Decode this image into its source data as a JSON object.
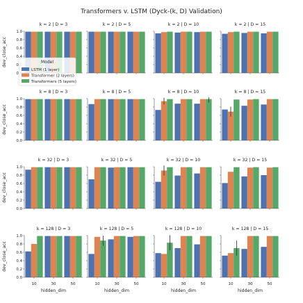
{
  "chart_data": {
    "type": "bar",
    "title": "Transformers v. LSTM (Dyck-(k, D) Validation)",
    "xlabel": "hidden_dim",
    "ylabel": "dev_close_acc",
    "categories": [
      "10",
      "30",
      "50"
    ],
    "ylim": [
      0,
      1.0
    ],
    "yticks": [
      "0.0",
      "0.2",
      "0.4",
      "0.6",
      "0.8",
      "1.0"
    ],
    "grid": false,
    "legend": {
      "title": "Model",
      "placement": "upper-left of first panel",
      "entries": [
        "LSTM (1 layer)",
        "Transformer (2 layers)",
        "Transformers (5 layers)"
      ]
    },
    "colors": [
      "#4C72B0",
      "#DD8452",
      "#55A868"
    ],
    "panels": [
      {
        "title": "k = 2 | D = 3",
        "series": [
          {
            "values": [
              0.99,
              0.99,
              0.99
            ]
          },
          {
            "values": [
              0.99,
              0.99,
              0.99
            ]
          },
          {
            "values": [
              0.99,
              0.99,
              0.99
            ]
          }
        ],
        "err": [
          [
            0,
            0,
            0
          ],
          [
            0,
            0,
            0
          ],
          [
            0,
            0,
            0
          ]
        ]
      },
      {
        "title": "k = 2 | D = 5",
        "series": [
          {
            "values": [
              0.99,
              0.99,
              0.99
            ]
          },
          {
            "values": [
              0.99,
              0.99,
              0.99
            ]
          },
          {
            "values": [
              0.99,
              0.99,
              0.99
            ]
          }
        ],
        "err": [
          [
            0,
            0,
            0
          ],
          [
            0,
            0,
            0
          ],
          [
            0,
            0,
            0
          ]
        ]
      },
      {
        "title": "k = 2 | D = 10",
        "series": [
          {
            "values": [
              0.95,
              0.97,
              0.98
            ]
          },
          {
            "values": [
              0.98,
              0.99,
              0.99
            ]
          },
          {
            "values": [
              0.99,
              0.99,
              0.99
            ]
          }
        ],
        "err": [
          [
            0,
            0,
            0
          ],
          [
            0,
            0,
            0
          ],
          [
            0,
            0,
            0
          ]
        ]
      },
      {
        "title": "k = 2 | D = 15",
        "series": [
          {
            "values": [
              0.94,
              0.96,
              0.95
            ]
          },
          {
            "values": [
              0.98,
              0.99,
              0.99
            ]
          },
          {
            "values": [
              0.99,
              0.99,
              0.99
            ]
          }
        ],
        "err": [
          [
            0,
            0,
            0
          ],
          [
            0,
            0,
            0
          ],
          [
            0,
            0,
            0
          ]
        ]
      },
      {
        "title": "k = 8 | D = 3",
        "series": [
          {
            "values": [
              0.99,
              0.99,
              0.99
            ]
          },
          {
            "values": [
              0.99,
              0.99,
              0.99
            ]
          },
          {
            "values": [
              0.99,
              0.99,
              0.99
            ]
          }
        ],
        "err": [
          [
            0,
            0,
            0
          ],
          [
            0,
            0,
            0
          ],
          [
            0,
            0,
            0
          ]
        ]
      },
      {
        "title": "k = 8 | D = 5",
        "series": [
          {
            "values": [
              0.87,
              0.99,
              0.99
            ]
          },
          {
            "values": [
              0.99,
              0.99,
              0.99
            ]
          },
          {
            "values": [
              0.99,
              0.99,
              0.99
            ]
          }
        ],
        "err": [
          [
            0,
            0,
            0
          ],
          [
            0,
            0,
            0
          ],
          [
            0,
            0,
            0
          ]
        ]
      },
      {
        "title": "k = 8 | D = 10",
        "series": [
          {
            "values": [
              0.73,
              0.88,
              0.88
            ]
          },
          {
            "values": [
              0.94,
              0.99,
              0.99
            ]
          },
          {
            "values": [
              0.99,
              0.99,
              0.99
            ]
          }
        ],
        "err": [
          [
            0,
            0,
            0
          ],
          [
            0.08,
            0,
            0
          ],
          [
            0,
            0,
            0.08
          ]
        ]
      },
      {
        "title": "k = 8 | D = 15",
        "series": [
          {
            "values": [
              0.74,
              0.83,
              0.86
            ]
          },
          {
            "values": [
              0.69,
              0.98,
              0.99
            ]
          },
          {
            "values": [
              0.98,
              0.99,
              0.99
            ]
          }
        ],
        "err": [
          [
            0,
            0,
            0
          ],
          [
            0.12,
            0,
            0
          ],
          [
            0,
            0,
            0
          ]
        ]
      },
      {
        "title": "k = 32 | D = 3",
        "series": [
          {
            "values": [
              0.93,
              0.99,
              0.99
            ]
          },
          {
            "values": [
              0.99,
              0.99,
              0.99
            ]
          },
          {
            "values": [
              0.99,
              0.99,
              0.99
            ]
          }
        ],
        "err": [
          [
            0,
            0,
            0
          ],
          [
            0,
            0,
            0
          ],
          [
            0,
            0,
            0
          ]
        ]
      },
      {
        "title": "k = 32 | D = 5",
        "series": [
          {
            "values": [
              0.7,
              0.98,
              0.99
            ]
          },
          {
            "values": [
              0.99,
              0.99,
              0.99
            ]
          },
          {
            "values": [
              0.99,
              0.99,
              0.99
            ]
          }
        ],
        "err": [
          [
            0,
            0,
            0
          ],
          [
            0,
            0,
            0
          ],
          [
            0,
            0,
            0
          ]
        ]
      },
      {
        "title": "k = 32 | D = 10",
        "series": [
          {
            "values": [
              0.64,
              0.79,
              0.84
            ]
          },
          {
            "values": [
              0.91,
              0.99,
              0.99
            ]
          },
          {
            "values": [
              0.99,
              0.99,
              0.99
            ]
          }
        ],
        "err": [
          [
            0,
            0,
            0
          ],
          [
            0.12,
            0,
            0
          ],
          [
            0,
            0,
            0
          ]
        ]
      },
      {
        "title": "k = 32 | D = 15",
        "series": [
          {
            "values": [
              0.61,
              0.77,
              0.8
            ]
          },
          {
            "values": [
              0.88,
              0.98,
              0.98
            ]
          },
          {
            "values": [
              0.99,
              0.99,
              0.99
            ]
          }
        ],
        "err": [
          [
            0,
            0,
            0
          ],
          [
            0,
            0,
            0
          ],
          [
            0,
            0,
            0
          ]
        ]
      },
      {
        "title": "k = 128 | D = 3",
        "series": [
          {
            "values": [
              0.62,
              0.99,
              0.99
            ]
          },
          {
            "values": [
              0.8,
              0.99,
              0.99
            ]
          },
          {
            "values": [
              0.99,
              0.99,
              0.99
            ]
          }
        ],
        "err": [
          [
            0,
            0,
            0
          ],
          [
            0,
            0,
            0
          ],
          [
            0,
            0,
            0
          ]
        ]
      },
      {
        "title": "k = 128 | D = 5",
        "series": [
          {
            "values": [
              0.56,
              0.91,
              0.97
            ]
          },
          {
            "values": [
              0.97,
              0.99,
              0.99
            ]
          },
          {
            "values": [
              0.88,
              0.99,
              0.99
            ]
          }
        ],
        "err": [
          [
            0,
            0,
            0
          ],
          [
            0,
            0,
            0
          ],
          [
            0.12,
            0,
            0
          ]
        ]
      },
      {
        "title": "k = 128 | D = 10",
        "series": [
          {
            "values": [
              0.58,
              0.7,
              0.79
            ]
          },
          {
            "values": [
              0.56,
              0.99,
              0.99
            ]
          },
          {
            "values": [
              0.83,
              0.99,
              0.99
            ]
          }
        ],
        "err": [
          [
            0,
            0,
            0
          ],
          [
            0,
            0,
            0
          ],
          [
            0.18,
            0,
            0
          ]
        ]
      },
      {
        "title": "k = 128 | D = 15",
        "series": [
          {
            "values": [
              0.52,
              0.68,
              0.73
            ]
          },
          {
            "values": [
              0.58,
              0.99,
              0.99
            ]
          },
          {
            "values": [
              0.7,
              0.99,
              0.99
            ]
          }
        ],
        "err": [
          [
            0,
            0,
            0
          ],
          [
            0,
            0,
            0
          ],
          [
            0.18,
            0,
            0
          ]
        ]
      }
    ]
  }
}
